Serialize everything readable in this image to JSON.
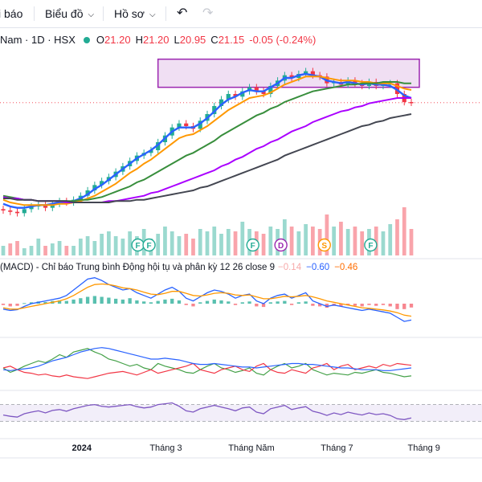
{
  "toolbar": {
    "indicators_label": "i báo",
    "chart_menu_label": "Biểu đồ",
    "profile_menu_label": "Hồ sơ",
    "undo_icon": "undo-icon",
    "redo_icon": "redo-icon"
  },
  "legend": {
    "symbol": "Nam · 1D · HSX",
    "open_key": "O",
    "open": "21.20",
    "high_key": "H",
    "high": "21.20",
    "low_key": "L",
    "low": "20.95",
    "close_key": "C",
    "close": "21.15",
    "change": "-0.05 (-0.24%)",
    "status_color": "#22ab94"
  },
  "macd_legend": {
    "label": "(MACD) - Chỉ báo Trung bình Động hội tụ và phân kỳ 12 26 close 9",
    "histogram": "−0.14",
    "macd": "−0.60",
    "signal": "−0.46"
  },
  "events": [
    {
      "label": "F",
      "date": "2024-02-10",
      "color": "#22ab94"
    },
    {
      "label": "F",
      "date": "2024-02-18",
      "color": "#22ab94"
    },
    {
      "label": "F",
      "date": "2024-05-02",
      "color": "#22ab94"
    },
    {
      "label": "D",
      "date": "2024-05-22",
      "color": "#9c27b0"
    },
    {
      "label": "S",
      "date": "2024-06-22",
      "color": "#ff9800"
    },
    {
      "label": "F",
      "date": "2024-07-25",
      "color": "#22ab94"
    }
  ],
  "xaxis": {
    "labels": [
      {
        "text": "2024",
        "bold": true,
        "date": "2024-01-01"
      },
      {
        "text": "Tháng 3",
        "bold": false,
        "date": "2024-03-01"
      },
      {
        "text": "Tháng Năm",
        "bold": false,
        "date": "2024-05-01"
      },
      {
        "text": "Tháng 7",
        "bold": false,
        "date": "2024-07-01"
      },
      {
        "text": "Tháng 9",
        "bold": false,
        "date": "2024-09-01"
      }
    ]
  },
  "colors": {
    "ema_blue": "#2962ff",
    "ema_yellow": "#ffeb3b",
    "ema_orange": "#ff9800",
    "ema_green": "#388e3c",
    "ema_purple": "#aa00ff",
    "ema_dark": "#434651",
    "up": "#22ab94",
    "down": "#f23645",
    "consolidation_box": "#9c27b0"
  },
  "chart_data": {
    "type": "line",
    "x_start_date": "2023-11-06",
    "x_end_date": "2024-08-23",
    "price": {
      "ylim": [
        12.5,
        24.5
      ],
      "close": [
        13.1,
        13.0,
        12.9,
        13.2,
        13.4,
        13.5,
        13.3,
        13.6,
        13.8,
        13.7,
        13.9,
        14.2,
        14.6,
        15.0,
        15.3,
        15.6,
        16.0,
        16.4,
        16.8,
        17.2,
        17.4,
        17.6,
        18.2,
        18.7,
        19.3,
        19.6,
        19.4,
        19.2,
        19.8,
        20.3,
        20.9,
        21.4,
        21.8,
        21.6,
        22.0,
        22.3,
        22.0,
        21.8,
        22.4,
        22.8,
        23.2,
        23.0,
        23.3,
        23.5,
        23.2,
        23.1,
        22.6,
        22.7,
        22.5,
        22.8,
        22.6,
        22.4,
        22.7,
        22.4,
        22.5,
        22.6,
        21.8,
        21.2,
        21.15
      ],
      "consolidation_range": [
        22.3,
        24.4
      ],
      "reference_close": 21.15
    },
    "series": [
      {
        "key": "ema_fast",
        "values": [
          13.6,
          13.4,
          13.3,
          13.3,
          13.4,
          13.5,
          13.5,
          13.6,
          13.7,
          13.7,
          13.8,
          14.0,
          14.3,
          14.7,
          15.0,
          15.4,
          15.8,
          16.2,
          16.6,
          17.0,
          17.3,
          17.6,
          18.0,
          18.5,
          19.0,
          19.3,
          19.3,
          19.3,
          19.6,
          20.0,
          20.5,
          21.0,
          21.4,
          21.6,
          21.9,
          22.1,
          22.0,
          22.0,
          22.3,
          22.6,
          23.0,
          23.0,
          23.2,
          23.3,
          23.2,
          23.1,
          22.8,
          22.7,
          22.6,
          22.7,
          22.6,
          22.5,
          22.6,
          22.5,
          22.5,
          22.4,
          22.1,
          21.7,
          21.5
        ]
      },
      {
        "key": "ema_20",
        "values": [
          13.9,
          13.7,
          13.6,
          13.5,
          13.5,
          13.5,
          13.5,
          13.5,
          13.6,
          13.6,
          13.7,
          13.8,
          14.0,
          14.2,
          14.5,
          14.8,
          15.1,
          15.5,
          15.9,
          16.2,
          16.6,
          16.9,
          17.3,
          17.7,
          18.1,
          18.5,
          18.7,
          18.8,
          19.1,
          19.4,
          19.8,
          20.2,
          20.6,
          20.9,
          21.2,
          21.5,
          21.6,
          21.7,
          21.9,
          22.2,
          22.5,
          22.7,
          22.9,
          23.1,
          23.1,
          23.1,
          23.0,
          22.9,
          22.8,
          22.8,
          22.8,
          22.7,
          22.7,
          22.6,
          22.6,
          22.6,
          22.4,
          22.2,
          22.1
        ]
      },
      {
        "key": "ema_50",
        "values": [
          14.2,
          14.1,
          14.0,
          13.9,
          13.9,
          13.8,
          13.8,
          13.8,
          13.8,
          13.8,
          13.8,
          13.9,
          13.9,
          14.0,
          14.1,
          14.3,
          14.5,
          14.7,
          14.9,
          15.2,
          15.4,
          15.7,
          16.0,
          16.3,
          16.6,
          16.9,
          17.2,
          17.4,
          17.7,
          18.0,
          18.3,
          18.7,
          19.0,
          19.3,
          19.6,
          19.9,
          20.2,
          20.4,
          20.7,
          20.9,
          21.2,
          21.4,
          21.6,
          21.8,
          22.0,
          22.1,
          22.2,
          22.3,
          22.4,
          22.5,
          22.5,
          22.6,
          22.6,
          22.6,
          22.7,
          22.7,
          22.7,
          22.6,
          22.6
        ]
      },
      {
        "key": "ema_100",
        "values": [
          14.1,
          14.0,
          14.0,
          13.9,
          13.9,
          13.8,
          13.8,
          13.8,
          13.8,
          13.7,
          13.7,
          13.7,
          13.7,
          13.7,
          13.7,
          13.8,
          13.8,
          13.9,
          14.0,
          14.1,
          14.2,
          14.4,
          14.5,
          14.7,
          14.9,
          15.1,
          15.3,
          15.5,
          15.7,
          15.9,
          16.1,
          16.4,
          16.6,
          16.9,
          17.1,
          17.4,
          17.7,
          17.9,
          18.2,
          18.4,
          18.7,
          19.0,
          19.2,
          19.4,
          19.7,
          19.9,
          20.1,
          20.3,
          20.5,
          20.6,
          20.8,
          20.9,
          21.1,
          21.2,
          21.3,
          21.4,
          21.5,
          21.5,
          21.5
        ]
      },
      {
        "key": "ema_200",
        "values": [
          14.0,
          14.0,
          13.9,
          13.9,
          13.9,
          13.8,
          13.8,
          13.8,
          13.8,
          13.8,
          13.7,
          13.7,
          13.7,
          13.7,
          13.7,
          13.7,
          13.8,
          13.8,
          13.8,
          13.9,
          13.9,
          14.0,
          14.1,
          14.2,
          14.3,
          14.4,
          14.5,
          14.6,
          14.8,
          14.9,
          15.1,
          15.3,
          15.5,
          15.7,
          15.9,
          16.1,
          16.3,
          16.5,
          16.7,
          16.9,
          17.2,
          17.4,
          17.6,
          17.8,
          18.0,
          18.2,
          18.4,
          18.6,
          18.8,
          19.0,
          19.2,
          19.4,
          19.5,
          19.7,
          19.8,
          20.0,
          20.1,
          20.2,
          20.3
        ]
      }
    ],
    "volume": {
      "values": [
        0.2,
        0.25,
        0.3,
        0.15,
        0.2,
        0.35,
        0.2,
        0.25,
        0.3,
        0.2,
        0.2,
        0.35,
        0.4,
        0.3,
        0.45,
        0.5,
        0.4,
        0.35,
        0.5,
        0.4,
        0.55,
        0.35,
        0.45,
        0.6,
        0.5,
        0.4,
        0.45,
        0.35,
        0.55,
        0.5,
        0.6,
        0.45,
        0.55,
        0.5,
        0.7,
        0.55,
        0.5,
        0.45,
        0.6,
        0.55,
        0.75,
        0.6,
        0.5,
        0.65,
        0.6,
        0.55,
        0.85,
        0.6,
        0.7,
        0.55,
        0.6,
        0.5,
        0.55,
        0.6,
        0.5,
        0.65,
        0.75,
        1.0,
        0.55
      ],
      "up": [
        1,
        0,
        0,
        1,
        1,
        1,
        0,
        1,
        1,
        0,
        1,
        1,
        1,
        1,
        1,
        1,
        1,
        1,
        1,
        1,
        1,
        1,
        1,
        1,
        1,
        1,
        0,
        0,
        1,
        1,
        1,
        1,
        1,
        0,
        1,
        1,
        0,
        0,
        1,
        1,
        1,
        0,
        1,
        1,
        0,
        0,
        0,
        1,
        0,
        1,
        0,
        0,
        1,
        0,
        1,
        1,
        0,
        0,
        0
      ]
    },
    "macd": {
      "ylim": [
        -1.0,
        1.0
      ],
      "histogram": [
        -0.05,
        -0.1,
        -0.08,
        0.02,
        0.05,
        0.08,
        0.06,
        0.1,
        0.12,
        0.1,
        0.15,
        0.2,
        0.25,
        0.28,
        0.25,
        0.22,
        0.18,
        0.15,
        0.2,
        0.12,
        0.08,
        0.05,
        0.1,
        0.15,
        0.18,
        0.12,
        -0.05,
        -0.1,
        0.05,
        0.1,
        0.15,
        0.12,
        0.08,
        -0.05,
        0.05,
        0.08,
        -0.1,
        -0.12,
        0.05,
        0.08,
        0.1,
        -0.05,
        0.05,
        0.08,
        -0.08,
        -0.1,
        -0.15,
        -0.08,
        -0.1,
        -0.05,
        -0.08,
        -0.1,
        -0.05,
        -0.08,
        -0.05,
        -0.1,
        -0.2,
        -0.2,
        -0.14
      ],
      "macd_line": [
        -0.2,
        -0.25,
        -0.22,
        -0.1,
        0.0,
        0.05,
        0.1,
        0.15,
        0.2,
        0.3,
        0.5,
        0.7,
        0.9,
        0.95,
        0.85,
        0.7,
        0.6,
        0.5,
        0.55,
        0.4,
        0.3,
        0.2,
        0.35,
        0.5,
        0.6,
        0.45,
        0.2,
        0.1,
        0.25,
        0.4,
        0.5,
        0.45,
        0.35,
        0.2,
        0.3,
        0.35,
        0.1,
        0.0,
        0.2,
        0.3,
        0.35,
        0.2,
        0.3,
        0.4,
        0.1,
        0.0,
        -0.1,
        -0.05,
        -0.1,
        -0.15,
        -0.2,
        -0.25,
        -0.2,
        -0.25,
        -0.3,
        -0.35,
        -0.5,
        -0.65,
        -0.6
      ],
      "signal_line": [
        -0.15,
        -0.2,
        -0.2,
        -0.15,
        -0.1,
        -0.05,
        0.0,
        0.05,
        0.1,
        0.18,
        0.3,
        0.45,
        0.6,
        0.7,
        0.72,
        0.7,
        0.65,
        0.58,
        0.55,
        0.5,
        0.42,
        0.35,
        0.33,
        0.38,
        0.45,
        0.45,
        0.38,
        0.3,
        0.28,
        0.32,
        0.38,
        0.4,
        0.38,
        0.32,
        0.3,
        0.32,
        0.25,
        0.18,
        0.18,
        0.22,
        0.27,
        0.25,
        0.27,
        0.3,
        0.25,
        0.18,
        0.1,
        0.05,
        0.0,
        -0.05,
        -0.1,
        -0.15,
        -0.17,
        -0.2,
        -0.23,
        -0.27,
        -0.33,
        -0.42,
        -0.46
      ]
    },
    "dmi": {
      "ylim": [
        0,
        50
      ],
      "di_plus": [
        20,
        15,
        18,
        22,
        25,
        28,
        26,
        30,
        35,
        32,
        38,
        40,
        42,
        38,
        35,
        30,
        28,
        25,
        22,
        24,
        20,
        18,
        25,
        22,
        20,
        18,
        15,
        14,
        18,
        22,
        25,
        20,
        18,
        15,
        17,
        20,
        14,
        12,
        18,
        22,
        25,
        20,
        22,
        25,
        18,
        15,
        12,
        14,
        13,
        12,
        15,
        14,
        16,
        18,
        15,
        14,
        12,
        10,
        11
      ],
      "di_minus": [
        20,
        22,
        18,
        15,
        14,
        12,
        13,
        11,
        10,
        12,
        10,
        9,
        8,
        10,
        12,
        14,
        15,
        16,
        14,
        12,
        15,
        18,
        14,
        16,
        18,
        20,
        22,
        25,
        18,
        16,
        14,
        18,
        20,
        22,
        18,
        16,
        22,
        25,
        18,
        15,
        14,
        18,
        16,
        14,
        20,
        22,
        25,
        18,
        22,
        24,
        18,
        20,
        22,
        20,
        24,
        22,
        25,
        24,
        23
      ],
      "adx": [
        18,
        17,
        18,
        19,
        20,
        22,
        25,
        28,
        30,
        32,
        35,
        38,
        40,
        42,
        43,
        42,
        40,
        38,
        36,
        34,
        32,
        30,
        30,
        31,
        30,
        29,
        27,
        25,
        24,
        24,
        25,
        24,
        23,
        22,
        21,
        21,
        20,
        21,
        22,
        23,
        24,
        25,
        25,
        24,
        24,
        23,
        22,
        21,
        20,
        20,
        19,
        18,
        18,
        18,
        17,
        17,
        18,
        19,
        20
      ]
    },
    "rsi": {
      "ylim": [
        0,
        100
      ],
      "band": [
        30,
        70
      ],
      "values": [
        45,
        42,
        40,
        48,
        52,
        55,
        50,
        56,
        58,
        54,
        60,
        64,
        68,
        70,
        66,
        64,
        66,
        68,
        70,
        65,
        62,
        64,
        70,
        72,
        74,
        66,
        55,
        52,
        60,
        64,
        68,
        64,
        60,
        55,
        62,
        64,
        52,
        48,
        60,
        64,
        68,
        58,
        62,
        65,
        54,
        50,
        44,
        50,
        46,
        52,
        48,
        45,
        50,
        46,
        48,
        44,
        36,
        34,
        38
      ]
    }
  }
}
